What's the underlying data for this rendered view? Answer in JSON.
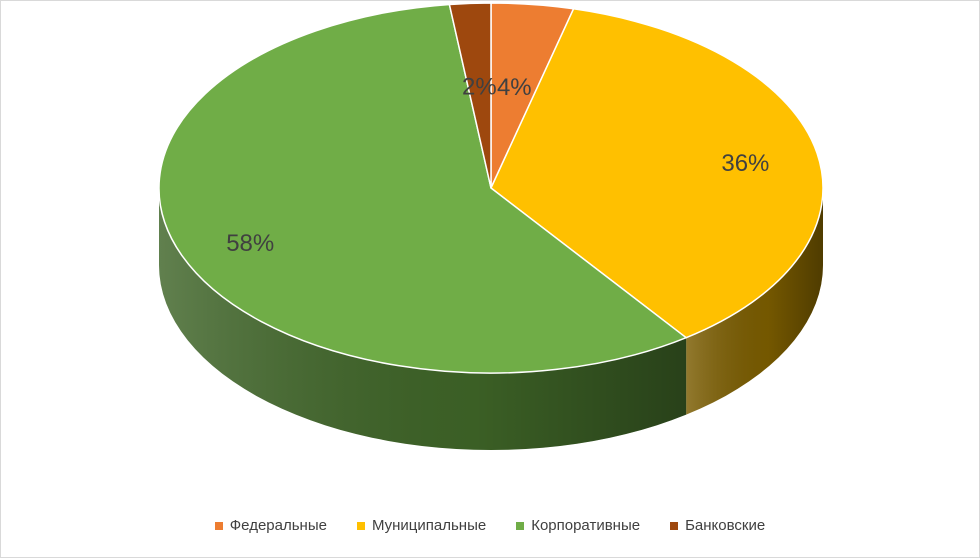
{
  "chart_data": {
    "type": "pie",
    "style": "3d",
    "title": "",
    "slices": [
      {
        "label": "Федеральные",
        "value": 4,
        "value_label": "4%",
        "color": "#ED7D31",
        "side_color": "#A35620"
      },
      {
        "label": "Муниципальные",
        "value": 36,
        "value_label": "36%",
        "color": "#FFC000",
        "side_color": "#7A5C00"
      },
      {
        "label": "Корпоративные",
        "value": 58,
        "value_label": "58%",
        "color": "#70AD47",
        "side_color": "#3E6427"
      },
      {
        "label": "Банковские",
        "value": 2,
        "value_label": "2%",
        "color": "#9E480E",
        "side_color": "#5E2A08"
      }
    ],
    "legend_position": "bottom",
    "start_angle_deg": 0,
    "direction": "clockwise"
  }
}
